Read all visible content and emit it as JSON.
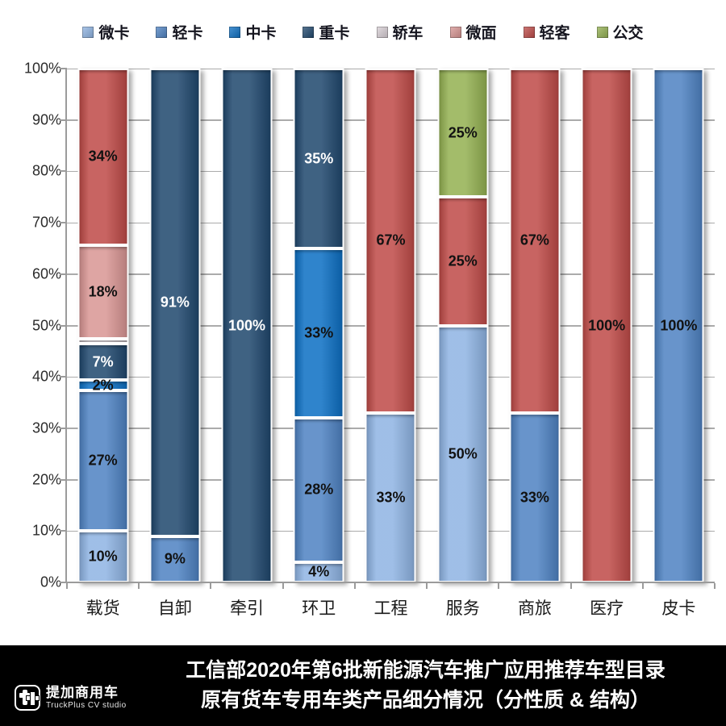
{
  "chart_data": {
    "type": "bar",
    "subtype": "stacked-100-percent",
    "title": "",
    "xlabel": "",
    "ylabel": "",
    "ylim": [
      0,
      100
    ],
    "grid": true,
    "legend_position": "top",
    "y_tick_labels": [
      "0%",
      "10%",
      "20%",
      "30%",
      "40%",
      "50%",
      "60%",
      "70%",
      "80%",
      "90%",
      "100%"
    ],
    "categories": [
      "载货",
      "自卸",
      "牵引",
      "环卫",
      "工程",
      "服务",
      "商旅",
      "医疗",
      "皮卡"
    ],
    "series_legend": [
      {
        "name": "微卡",
        "color": "#8fb4e3"
      },
      {
        "name": "轻卡",
        "color": "#4f83c3"
      },
      {
        "name": "中卡",
        "color": "#0d70c4"
      },
      {
        "name": "重卡",
        "color": "#20486e"
      },
      {
        "name": "轿车",
        "color": "#d9d0d6"
      },
      {
        "name": "微面",
        "color": "#d99694"
      },
      {
        "name": "轻客",
        "color": "#bf4b48"
      },
      {
        "name": "公交",
        "color": "#94b152"
      }
    ],
    "bars": [
      {
        "category": "载货",
        "segments": [
          {
            "series": "微卡",
            "value": 10,
            "label": "10%",
            "light_text": false
          },
          {
            "series": "轻卡",
            "value": 27,
            "label": "27%",
            "light_text": false
          },
          {
            "series": "中卡",
            "value": 2,
            "label": "2%",
            "light_text": false
          },
          {
            "series": "重卡",
            "value": 7,
            "label": "7%",
            "light_text": true
          },
          {
            "series": "轿车",
            "value": 1,
            "label": "",
            "light_text": false
          },
          {
            "series": "微面",
            "value": 18,
            "label": "18%",
            "light_text": false
          },
          {
            "series": "轻客",
            "value": 34,
            "label": "34%",
            "light_text": false
          }
        ]
      },
      {
        "category": "自卸",
        "segments": [
          {
            "series": "轻卡",
            "value": 9,
            "label": "9%",
            "light_text": false
          },
          {
            "series": "重卡",
            "value": 91,
            "label": "91%",
            "light_text": true
          }
        ]
      },
      {
        "category": "牵引",
        "segments": [
          {
            "series": "重卡",
            "value": 100,
            "label": "100%",
            "light_text": true
          }
        ]
      },
      {
        "category": "环卫",
        "segments": [
          {
            "series": "微卡",
            "value": 4,
            "label": "4%",
            "light_text": false
          },
          {
            "series": "轻卡",
            "value": 28,
            "label": "28%",
            "light_text": false
          },
          {
            "series": "中卡",
            "value": 33,
            "label": "33%",
            "light_text": false
          },
          {
            "series": "重卡",
            "value": 35,
            "label": "35%",
            "light_text": true
          }
        ]
      },
      {
        "category": "工程",
        "segments": [
          {
            "series": "微卡",
            "value": 33,
            "label": "33%",
            "light_text": false
          },
          {
            "series": "轻客",
            "value": 67,
            "label": "67%",
            "light_text": false
          }
        ]
      },
      {
        "category": "服务",
        "segments": [
          {
            "series": "微卡",
            "value": 50,
            "label": "50%",
            "light_text": false
          },
          {
            "series": "轻客",
            "value": 25,
            "label": "25%",
            "light_text": false
          },
          {
            "series": "公交",
            "value": 25,
            "label": "25%",
            "light_text": false
          }
        ]
      },
      {
        "category": "商旅",
        "segments": [
          {
            "series": "轻卡",
            "value": 33,
            "label": "33%",
            "light_text": false
          },
          {
            "series": "轻客",
            "value": 67,
            "label": "67%",
            "light_text": false
          }
        ]
      },
      {
        "category": "医疗",
        "segments": [
          {
            "series": "轻客",
            "value": 100,
            "label": "100%",
            "light_text": false
          }
        ]
      },
      {
        "category": "皮卡",
        "segments": [
          {
            "series": "轻卡",
            "value": 100,
            "label": "100%",
            "light_text": false
          }
        ]
      }
    ]
  },
  "footer": {
    "background": "#000000",
    "logo_brand": "提加商用车",
    "logo_sub": "TruckPlus CV studio",
    "title_line1": "工信部2020年第6批新能源汽车推广应用推荐车型目录",
    "title_line2": "原有货车专用车类产品细分情况（分性质 & 结构）"
  },
  "style_colors": {
    "label_dark": "#121212",
    "label_light": "#ffffff",
    "grid": "#ababab",
    "axis": "#9b9b9b"
  }
}
